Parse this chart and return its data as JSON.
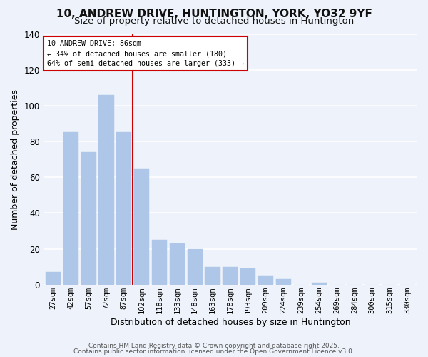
{
  "title": "10, ANDREW DRIVE, HUNTINGTON, YORK, YO32 9YF",
  "subtitle": "Size of property relative to detached houses in Huntington",
  "xlabel": "Distribution of detached houses by size in Huntington",
  "ylabel": "Number of detached properties",
  "bar_labels": [
    "27sqm",
    "42sqm",
    "57sqm",
    "72sqm",
    "87sqm",
    "102sqm",
    "118sqm",
    "133sqm",
    "148sqm",
    "163sqm",
    "178sqm",
    "193sqm",
    "209sqm",
    "224sqm",
    "239sqm",
    "254sqm",
    "269sqm",
    "284sqm",
    "300sqm",
    "315sqm",
    "330sqm"
  ],
  "bar_values": [
    7,
    85,
    74,
    106,
    85,
    65,
    25,
    23,
    20,
    10,
    10,
    9,
    5,
    3,
    0,
    1,
    0,
    0,
    0,
    0,
    0
  ],
  "bar_color": "#aec6e8",
  "bar_edge_color": "#aec6e8",
  "vline_color": "#cc0000",
  "ylim": [
    0,
    140
  ],
  "annotation_title": "10 ANDREW DRIVE: 86sqm",
  "annotation_line1": "← 34% of detached houses are smaller (180)",
  "annotation_line2": "64% of semi-detached houses are larger (333) →",
  "annotation_box_color": "#ffffff",
  "annotation_box_edge": "#cc0000",
  "footer1": "Contains HM Land Registry data © Crown copyright and database right 2025.",
  "footer2": "Contains public sector information licensed under the Open Government Licence v3.0.",
  "background_color": "#eef2fa",
  "grid_color": "#ffffff",
  "title_fontsize": 11,
  "subtitle_fontsize": 9.5,
  "axis_label_fontsize": 9,
  "tick_fontsize": 7.5,
  "footer_fontsize": 6.5
}
